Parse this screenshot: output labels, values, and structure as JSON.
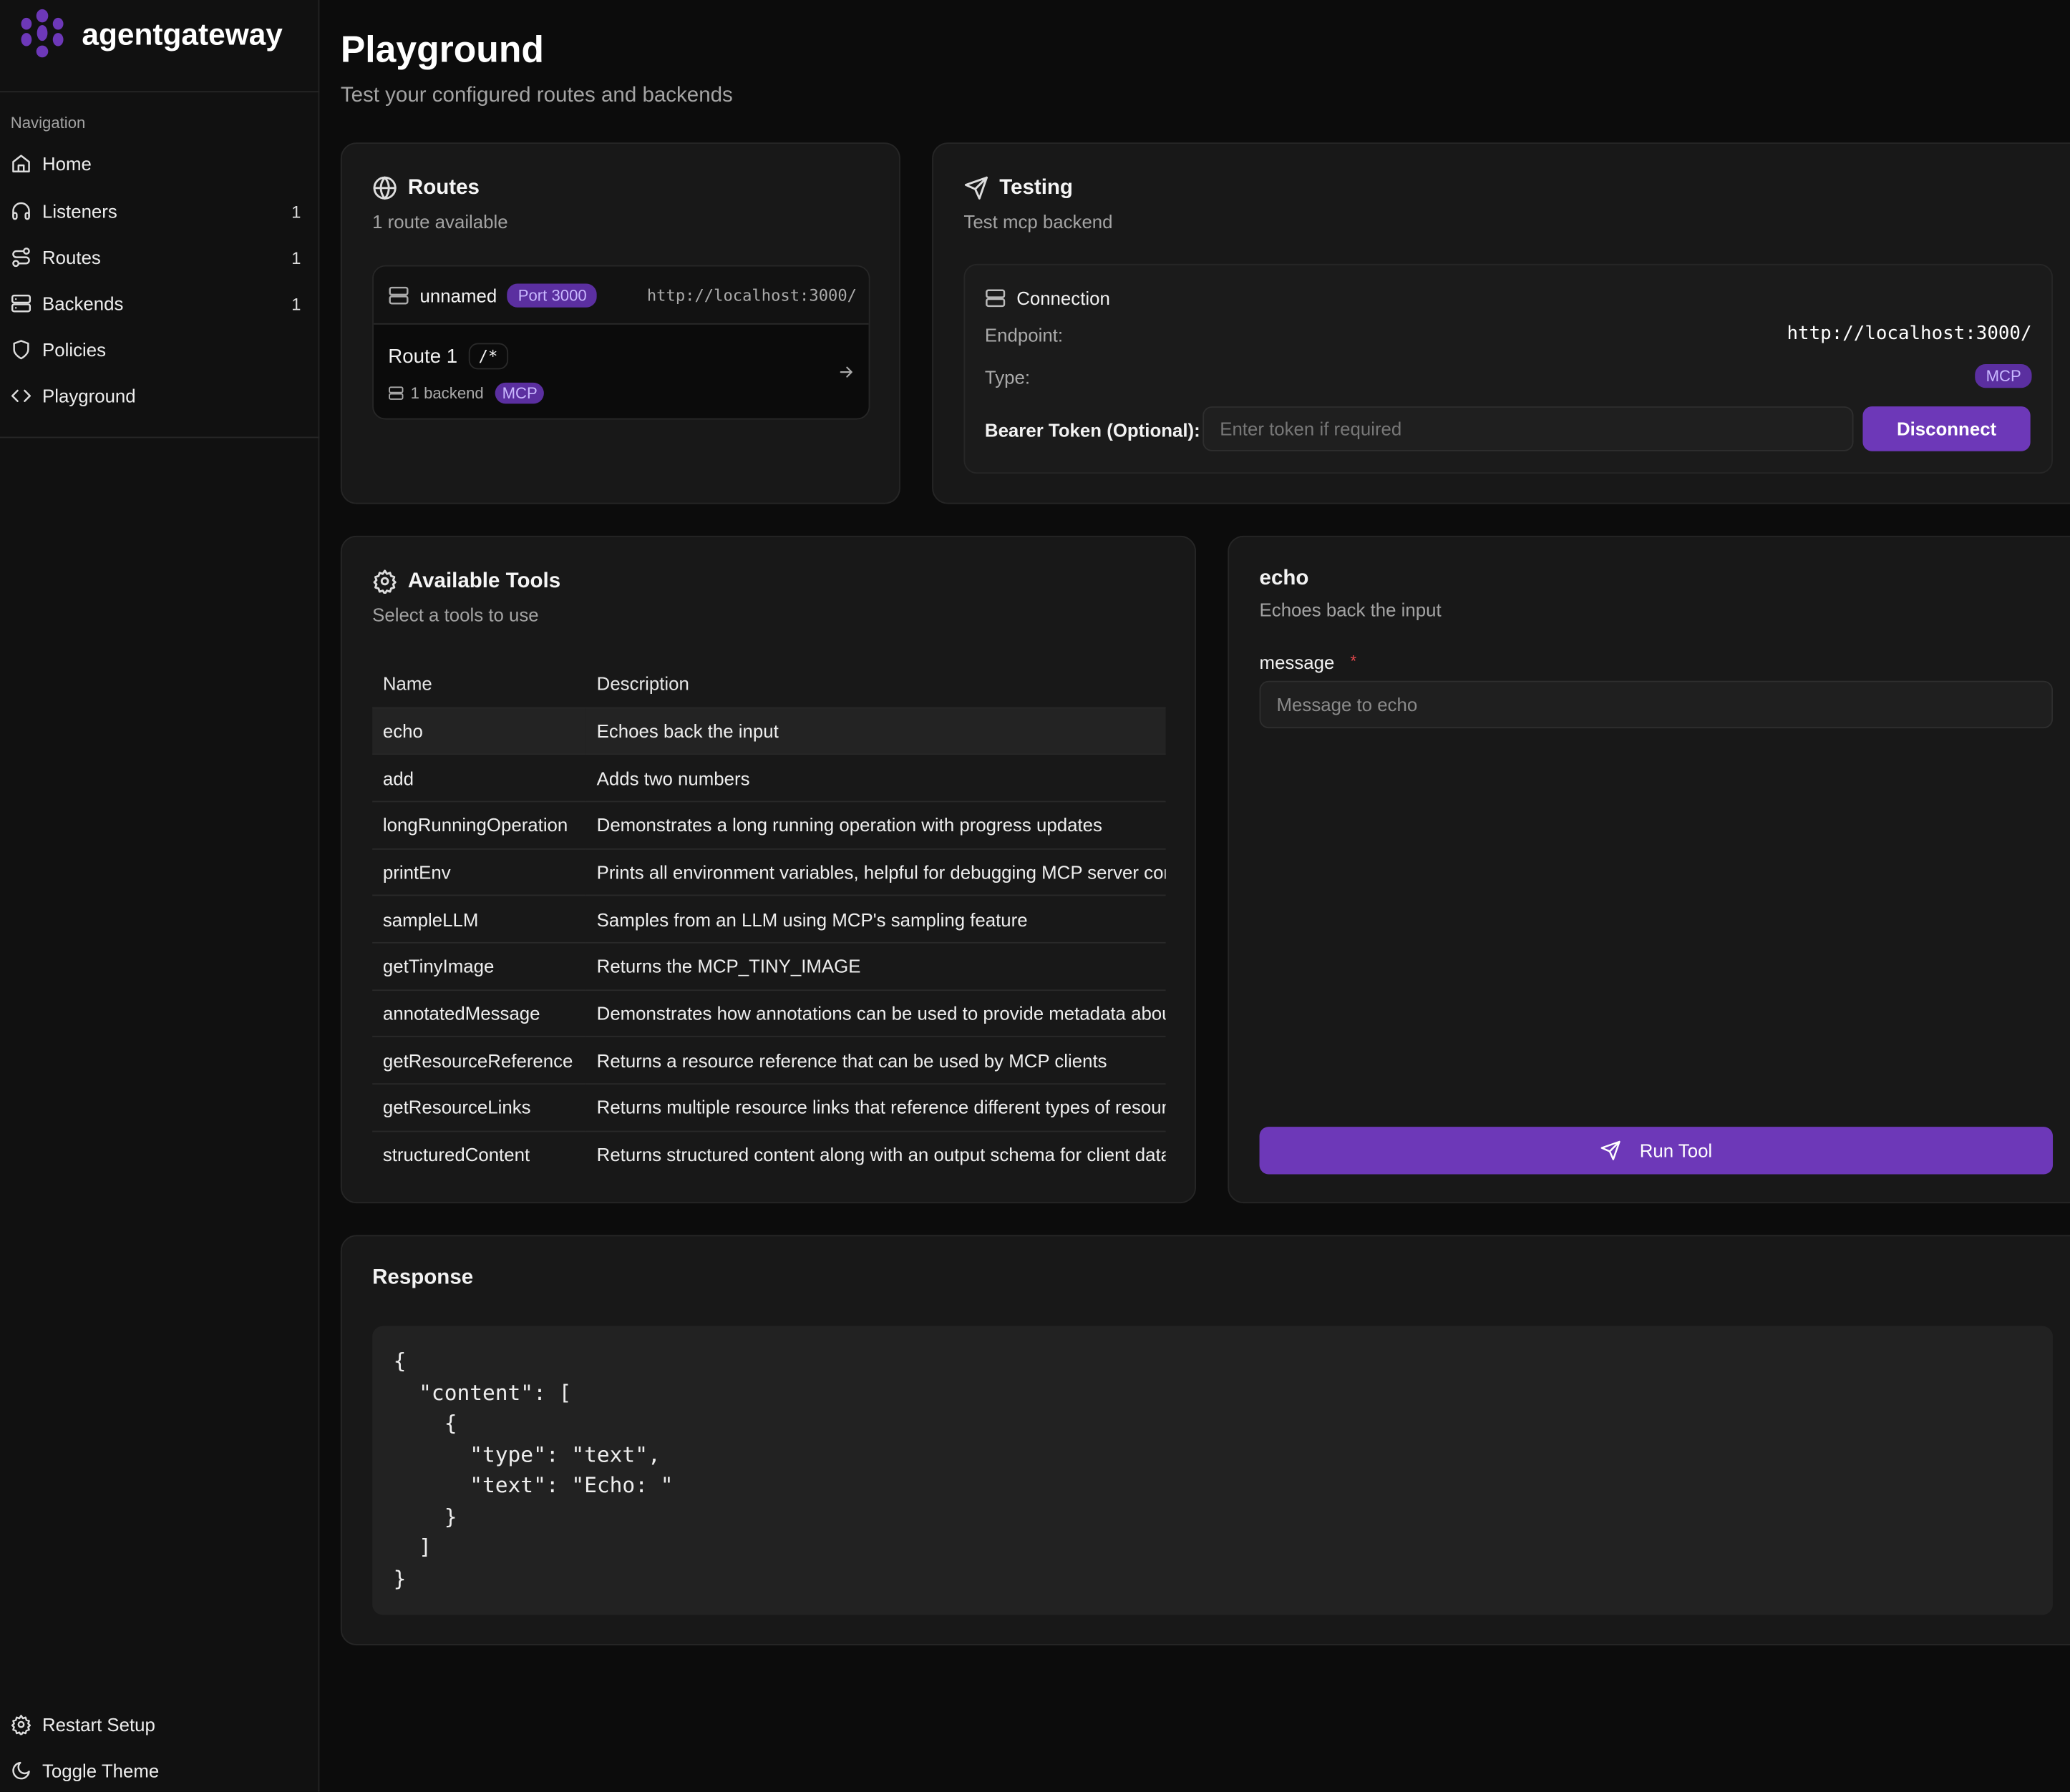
{
  "brand": {
    "name": "agentgateway",
    "accent": "#6d38b8"
  },
  "sidebar": {
    "section_label": "Navigation",
    "items": [
      {
        "label": "Home",
        "icon": "home-icon",
        "count": ""
      },
      {
        "label": "Listeners",
        "icon": "headphones-icon",
        "count": "1"
      },
      {
        "label": "Routes",
        "icon": "route-icon",
        "count": "1"
      },
      {
        "label": "Backends",
        "icon": "server-icon",
        "count": "1"
      },
      {
        "label": "Policies",
        "icon": "shield-icon",
        "count": ""
      },
      {
        "label": "Playground",
        "icon": "code-icon",
        "count": ""
      }
    ],
    "footer": [
      {
        "label": "Restart Setup",
        "icon": "gear-icon"
      },
      {
        "label": "Toggle Theme",
        "icon": "moon-icon"
      }
    ]
  },
  "header": {
    "title": "Playground",
    "subtitle": "Test your configured routes and backends"
  },
  "routes": {
    "title": "Routes",
    "subtitle": "1 route available",
    "listener": {
      "name": "unnamed",
      "port": "Port 3000",
      "url": "http://localhost:3000/"
    },
    "route": {
      "name": "Route 1",
      "path": "/*",
      "backends": "1 backend",
      "type": "MCP"
    }
  },
  "testing": {
    "title": "Testing",
    "subtitle": "Test mcp backend",
    "connection": {
      "title": "Connection",
      "endpoint_label": "Endpoint:",
      "endpoint": "http://localhost:3000/",
      "type_label": "Type:",
      "type": "MCP",
      "token_label": "Bearer Token (Optional):",
      "token_placeholder": "Enter token if required",
      "token_value": "",
      "disconnect": "Disconnect"
    }
  },
  "tools": {
    "title": "Available Tools",
    "subtitle": "Select a tools to use",
    "columns": [
      "Name",
      "Description"
    ],
    "rows": [
      {
        "name": "echo",
        "description": "Echoes back the input",
        "selected": true
      },
      {
        "name": "add",
        "description": "Adds two numbers"
      },
      {
        "name": "longRunningOperation",
        "description": "Demonstrates a long running operation with progress updates"
      },
      {
        "name": "printEnv",
        "description": "Prints all environment variables, helpful for debugging MCP server configuration"
      },
      {
        "name": "sampleLLM",
        "description": "Samples from an LLM using MCP's sampling feature"
      },
      {
        "name": "getTinyImage",
        "description": "Returns the MCP_TINY_IMAGE"
      },
      {
        "name": "annotatedMessage",
        "description": "Demonstrates how annotations can be used to provide metadata about content"
      },
      {
        "name": "getResourceReference",
        "description": "Returns a resource reference that can be used by MCP clients"
      },
      {
        "name": "getResourceLinks",
        "description": "Returns multiple resource links that reference different types of resources"
      },
      {
        "name": "structuredContent",
        "description": "Returns structured content along with an output schema for client data validation"
      }
    ]
  },
  "tool_form": {
    "title": "echo",
    "description": "Echoes back the input",
    "field_label": "message",
    "required_mark": "*",
    "field_placeholder": "Message to echo",
    "field_value": "",
    "run": "Run Tool"
  },
  "response": {
    "title": "Response",
    "body": "{\n  \"content\": [\n    {\n      \"type\": \"text\",\n      \"text\": \"Echo: \"\n    }\n  ]\n}"
  }
}
